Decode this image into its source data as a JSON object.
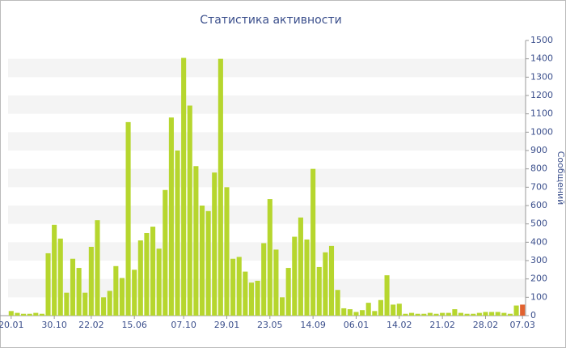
{
  "chart_data": {
    "type": "bar",
    "title": "Статистика активности",
    "y_label": "Сообщений",
    "categories": [
      "20.01",
      null,
      null,
      null,
      null,
      null,
      null,
      "30.10",
      null,
      null,
      null,
      null,
      null,
      "22.02",
      null,
      null,
      null,
      null,
      null,
      null,
      "15.06",
      null,
      null,
      null,
      null,
      null,
      null,
      null,
      "07.10",
      null,
      null,
      null,
      null,
      null,
      null,
      "29.01",
      null,
      null,
      null,
      null,
      null,
      null,
      "23.05",
      null,
      null,
      null,
      null,
      null,
      null,
      "14.09",
      null,
      null,
      null,
      null,
      null,
      null,
      "06.01",
      null,
      null,
      null,
      null,
      null,
      null,
      "14.02",
      null,
      null,
      null,
      null,
      null,
      null,
      "21.02",
      null,
      null,
      null,
      null,
      null,
      null,
      "28.02",
      null,
      null,
      null,
      null,
      null,
      "07.03"
    ],
    "values": [
      25,
      15,
      10,
      10,
      15,
      10,
      340,
      495,
      420,
      125,
      310,
      260,
      125,
      375,
      520,
      100,
      135,
      270,
      205,
      1055,
      250,
      410,
      450,
      485,
      365,
      685,
      1080,
      900,
      1405,
      1145,
      815,
      600,
      570,
      780,
      1400,
      700,
      310,
      320,
      240,
      180,
      190,
      395,
      635,
      360,
      100,
      260,
      430,
      535,
      415,
      800,
      265,
      345,
      380,
      140,
      40,
      35,
      20,
      30,
      70,
      25,
      85,
      220,
      60,
      65,
      10,
      15,
      10,
      10,
      15,
      10,
      15,
      15,
      35,
      15,
      10,
      10,
      15,
      20,
      20,
      20,
      15,
      10,
      55,
      60
    ],
    "color": "#b6d62e",
    "last_bar_color": "#e2622f",
    "ylim": [
      0,
      1500
    ],
    "yticks": [
      0,
      100,
      200,
      300,
      400,
      500,
      600,
      700,
      800,
      900,
      1000,
      1100,
      1200,
      1300,
      1400,
      1500
    ],
    "grid": true
  }
}
